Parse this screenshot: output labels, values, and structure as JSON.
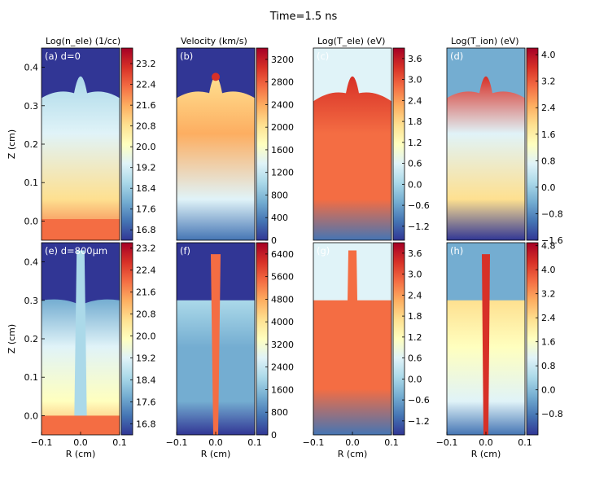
{
  "figure": {
    "title": "Time=1.5 ns"
  },
  "colors": {
    "colormap_stops": [
      "#313695",
      "#4575b4",
      "#74add1",
      "#abd9e9",
      "#e0f3f8",
      "#ffffbf",
      "#fee090",
      "#fdae61",
      "#f46d43",
      "#d73027",
      "#a50026"
    ]
  },
  "chart_data": [
    {
      "type": "heatmap",
      "panel": "a",
      "row": 0,
      "col": 0,
      "title": "Log(n_ele) (1/cc)",
      "label": "(a) d=0",
      "xlabel": "",
      "ylabel": "Z (cm)",
      "xlim": [
        -0.1,
        0.1
      ],
      "ylim": [
        -0.05,
        0.45
      ],
      "x_ticks": [],
      "y_ticks": [
        "0.0",
        "0.1",
        "0.2",
        "0.3",
        "0.4"
      ],
      "y_tick_values": [
        0,
        0.1,
        0.2,
        0.3,
        0.4
      ],
      "colorbar": {
        "min": 16.4,
        "max": 23.8,
        "ticks": [
          "16.8",
          "17.6",
          "18.4",
          "19.2",
          "20.0",
          "20.8",
          "21.6",
          "22.4",
          "23.2"
        ],
        "tick_values": [
          16.8,
          17.6,
          18.4,
          19.2,
          20.0,
          20.8,
          21.6,
          22.4,
          23.2
        ]
      }
    },
    {
      "type": "heatmap",
      "panel": "b",
      "row": 0,
      "col": 1,
      "title": "Velocity (km/s)",
      "label": "(b)",
      "xlabel": "",
      "ylabel": "",
      "xlim": [
        -0.1,
        0.1
      ],
      "ylim": [
        -0.05,
        0.45
      ],
      "x_ticks": [],
      "y_ticks": [],
      "y_tick_values": [],
      "colorbar": {
        "min": 0,
        "max": 3400,
        "ticks": [
          "0",
          "400",
          "800",
          "1200",
          "1600",
          "2000",
          "2400",
          "2800",
          "3200"
        ],
        "tick_values": [
          0,
          400,
          800,
          1200,
          1600,
          2000,
          2400,
          2800,
          3200
        ]
      }
    },
    {
      "type": "heatmap",
      "panel": "c",
      "row": 0,
      "col": 2,
      "title": "Log(T_ele) (eV)",
      "label": "(c)",
      "xlabel": "",
      "ylabel": "",
      "xlim": [
        -0.1,
        0.1
      ],
      "ylim": [
        -0.05,
        0.45
      ],
      "x_ticks": [],
      "y_ticks": [],
      "y_tick_values": [],
      "colorbar": {
        "min": -1.6,
        "max": 3.9,
        "ticks": [
          "−1.2",
          "−0.6",
          "0.0",
          "0.6",
          "1.2",
          "1.8",
          "2.4",
          "3.0",
          "3.6"
        ],
        "tick_values": [
          -1.2,
          -0.6,
          0,
          0.6,
          1.2,
          1.8,
          2.4,
          3.0,
          3.6
        ]
      }
    },
    {
      "type": "heatmap",
      "panel": "d",
      "row": 0,
      "col": 3,
      "title": "Log(T_ion) (eV)",
      "label": "(d)",
      "xlabel": "",
      "ylabel": "",
      "xlim": [
        -0.1,
        0.1
      ],
      "ylim": [
        -0.05,
        0.45
      ],
      "x_ticks": [],
      "y_ticks": [],
      "y_tick_values": [],
      "colorbar": {
        "min": -1.6,
        "max": 4.2,
        "ticks": [
          "−1.6",
          "−0.8",
          "0.0",
          "0.8",
          "1.6",
          "2.4",
          "3.2",
          "4.0"
        ],
        "tick_values": [
          -1.6,
          -0.8,
          0,
          0.8,
          1.6,
          2.4,
          3.2,
          4.0
        ]
      }
    },
    {
      "type": "heatmap",
      "panel": "e",
      "row": 1,
      "col": 0,
      "title": "",
      "label": "(e) d=800μm",
      "xlabel": "R (cm)",
      "ylabel": "Z (cm)",
      "xlim": [
        -0.1,
        0.1
      ],
      "ylim": [
        -0.05,
        0.45
      ],
      "x_ticks": [
        "−0.1",
        "0.0",
        "0.1"
      ],
      "x_tick_values": [
        -0.1,
        0,
        0.1
      ],
      "y_ticks": [
        "0.0",
        "0.1",
        "0.2",
        "0.3",
        "0.4"
      ],
      "y_tick_values": [
        0,
        0.1,
        0.2,
        0.3,
        0.4
      ],
      "colorbar": {
        "min": 16.4,
        "max": 23.4,
        "ticks": [
          "16.8",
          "17.6",
          "18.4",
          "19.2",
          "20.0",
          "20.8",
          "21.6",
          "22.4",
          "23.2"
        ],
        "tick_values": [
          16.8,
          17.6,
          18.4,
          19.2,
          20.0,
          20.8,
          21.6,
          22.4,
          23.2
        ]
      }
    },
    {
      "type": "heatmap",
      "panel": "f",
      "row": 1,
      "col": 1,
      "title": "",
      "label": "(f)",
      "xlabel": "R (cm)",
      "ylabel": "",
      "xlim": [
        -0.1,
        0.1
      ],
      "ylim": [
        -0.05,
        0.45
      ],
      "x_ticks": [
        "−0.1",
        "0.0",
        "0.1"
      ],
      "x_tick_values": [
        -0.1,
        0,
        0.1
      ],
      "y_ticks": [],
      "y_tick_values": [],
      "colorbar": {
        "min": 0,
        "max": 6800,
        "ticks": [
          "0",
          "800",
          "1600",
          "2400",
          "3200",
          "4000",
          "4800",
          "5600",
          "6400"
        ],
        "tick_values": [
          0,
          800,
          1600,
          2400,
          3200,
          4000,
          4800,
          5600,
          6400
        ]
      }
    },
    {
      "type": "heatmap",
      "panel": "g",
      "row": 1,
      "col": 2,
      "title": "",
      "label": "(g)",
      "xlabel": "R (cm)",
      "ylabel": "",
      "xlim": [
        -0.1,
        0.1
      ],
      "ylim": [
        -0.05,
        0.45
      ],
      "x_ticks": [
        "−0.1",
        "0.0",
        "0.1"
      ],
      "x_tick_values": [
        -0.1,
        0,
        0.1
      ],
      "y_ticks": [],
      "y_tick_values": [],
      "colorbar": {
        "min": -1.6,
        "max": 3.9,
        "ticks": [
          "−1.2",
          "−0.6",
          "0.0",
          "0.6",
          "1.2",
          "1.8",
          "2.4",
          "3.0",
          "3.6"
        ],
        "tick_values": [
          -1.2,
          -0.6,
          0,
          0.6,
          1.2,
          1.8,
          2.4,
          3.0,
          3.6
        ]
      }
    },
    {
      "type": "heatmap",
      "panel": "h",
      "row": 1,
      "col": 3,
      "title": "",
      "label": "(h)",
      "xlabel": "R (cm)",
      "ylabel": "",
      "xlim": [
        -0.1,
        0.1
      ],
      "ylim": [
        -0.05,
        0.45
      ],
      "x_ticks": [
        "−0.1",
        "0.0",
        "0.1"
      ],
      "x_tick_values": [
        -0.1,
        0,
        0.1
      ],
      "y_ticks": [],
      "y_tick_values": [],
      "colorbar": {
        "min": -1.5,
        "max": 4.9,
        "ticks": [
          "−0.8",
          "0.0",
          "0.8",
          "1.6",
          "2.4",
          "3.2",
          "4.0",
          "4.8"
        ],
        "tick_values": [
          -0.8,
          0,
          0.8,
          1.6,
          2.4,
          3.2,
          4.0,
          4.8
        ]
      }
    }
  ]
}
